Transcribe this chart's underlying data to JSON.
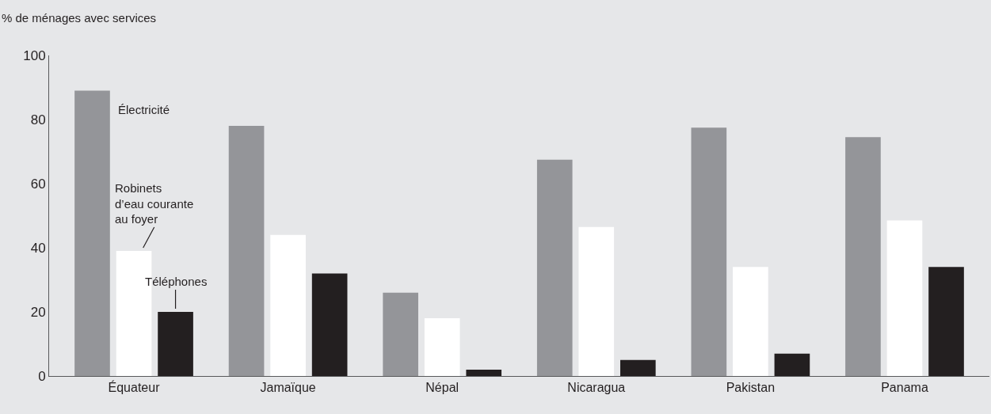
{
  "chart_data": {
    "type": "bar",
    "ylabel": "% de ménages avec services",
    "categories": [
      "Équateur",
      "Jamaïque",
      "Népal",
      "Nicaragua",
      "Pakistan",
      "Panama"
    ],
    "series": [
      {
        "name": "Électricité",
        "color": "#949599",
        "values": [
          89,
          78,
          26,
          67.5,
          77.5,
          74.5
        ]
      },
      {
        "name": "Robinets\nd’eau courante\nau foyer",
        "color": "#ffffff",
        "values": [
          39,
          44,
          18,
          46.5,
          34,
          48.5
        ]
      },
      {
        "name": "Téléphones",
        "color": "#231f20",
        "values": [
          20,
          32,
          2,
          5,
          7,
          34
        ]
      }
    ],
    "ylim": [
      0,
      100
    ],
    "yticks": [
      0,
      20,
      40,
      60,
      80,
      100
    ],
    "grid": false,
    "legend": false
  }
}
